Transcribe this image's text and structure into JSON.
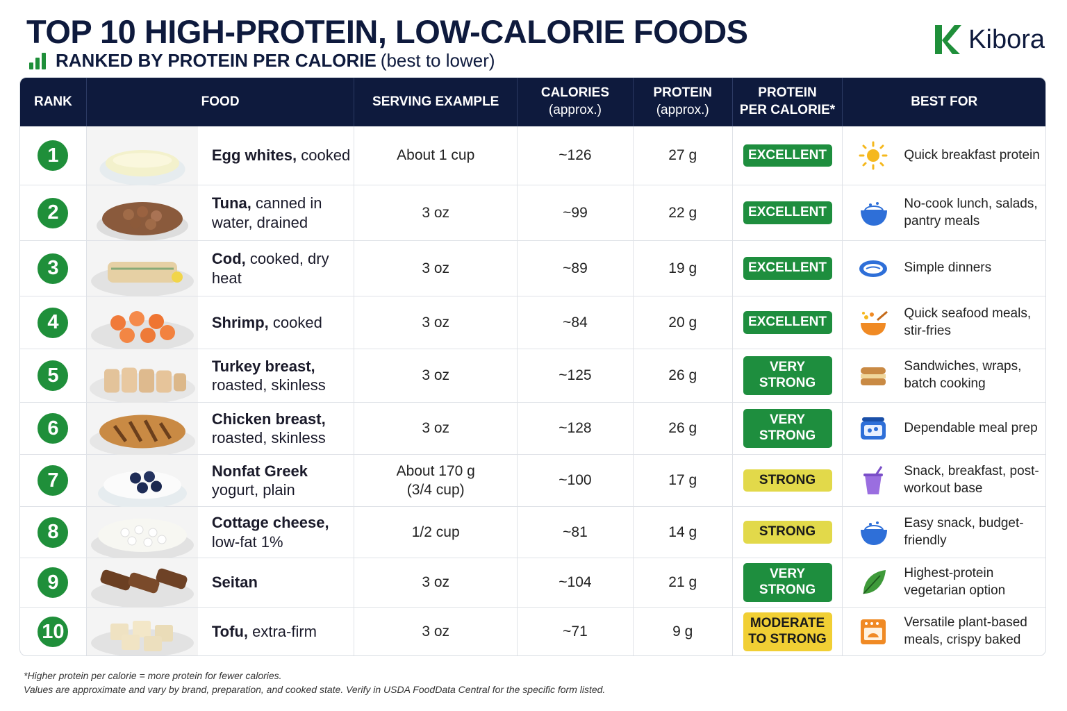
{
  "header": {
    "title": "TOP 10 HIGH-PROTEIN, LOW-CALORIE FOODS",
    "subtitle_main": "RANKED BY PROTEIN PER CALORIE",
    "subtitle_note": "(best to lower)",
    "subtitle_icon": "bar-chart-icon",
    "brand": "Kibora",
    "brand_color": "#1f8f3a"
  },
  "table": {
    "columns": [
      "RANK",
      "FOOD",
      "SERVING EXAMPLE",
      "CALORIES",
      "(approx.)",
      "PROTEIN",
      "(approx.)",
      "PROTEIN",
      "PER CALORIE*",
      "BEST FOR"
    ],
    "rows": [
      {
        "rank": "1",
        "food_bold": "Egg whites,",
        "food_rest": "cooked",
        "serving": "About 1 cup",
        "serving2": "",
        "calories": "~126",
        "protein": "27 g",
        "rating": "EXCELLENT",
        "rating2": "",
        "best_for": "Quick breakfast protein",
        "icon": "sun-icon"
      },
      {
        "rank": "2",
        "food_bold": "Tuna,",
        "food_rest": "canned in water, drained",
        "serving": "3 oz",
        "serving2": "",
        "calories": "~99",
        "protein": "22 g",
        "rating": "EXCELLENT",
        "rating2": "",
        "best_for": "No-cook lunch, salads, pantry meals",
        "icon": "bowl-icon"
      },
      {
        "rank": "3",
        "food_bold": "Cod,",
        "food_rest": "cooked, dry heat",
        "serving": "3 oz",
        "serving2": "",
        "calories": "~89",
        "protein": "19 g",
        "rating": "EXCELLENT",
        "rating2": "",
        "best_for": "Simple dinners",
        "icon": "fish-icon"
      },
      {
        "rank": "4",
        "food_bold": "Shrimp,",
        "food_rest": "cooked",
        "serving": "3 oz",
        "serving2": "",
        "calories": "~84",
        "protein": "20 g",
        "rating": "EXCELLENT",
        "rating2": "",
        "best_for": "Quick seafood meals, stir-fries",
        "icon": "stir-fry-bowl-icon"
      },
      {
        "rank": "5",
        "food_bold": "Turkey breast,",
        "food_rest": "roasted, skinless",
        "serving": "3 oz",
        "serving2": "",
        "calories": "~125",
        "protein": "26 g",
        "rating": "VERY STRONG",
        "rating2": "",
        "best_for": "Sandwiches, wraps, batch cooking",
        "icon": "sandwich-icon"
      },
      {
        "rank": "6",
        "food_bold": "Chicken breast,",
        "food_rest": "roasted, skinless",
        "serving": "3 oz",
        "serving2": "",
        "calories": "~128",
        "protein": "26 g",
        "rating": "VERY STRONG",
        "rating2": "",
        "best_for": "Dependable meal prep",
        "icon": "meal-prep-container-icon"
      },
      {
        "rank": "7",
        "food_bold": "Nonfat Greek",
        "food_rest": "yogurt, plain",
        "serving": "About 170 g",
        "serving2": "(3/4 cup)",
        "calories": "~100",
        "protein": "17 g",
        "rating": "STRONG",
        "rating2": "",
        "best_for": "Snack, breakfast, post-workout base",
        "icon": "cup-straw-icon"
      },
      {
        "rank": "8",
        "food_bold": "Cottage cheese,",
        "food_rest": "low-fat 1%",
        "serving": "1/2 cup",
        "serving2": "",
        "calories": "~81",
        "protein": "14 g",
        "rating": "STRONG",
        "rating2": "",
        "best_for": "Easy snack, budget-friendly",
        "icon": "bowl-icon"
      },
      {
        "rank": "9",
        "food_bold": "Seitan",
        "food_rest": "",
        "serving": "3 oz",
        "serving2": "",
        "calories": "~104",
        "protein": "21 g",
        "rating": "VERY STRONG",
        "rating2": "",
        "best_for": "Highest-protein vegetarian option",
        "icon": "leaf-icon"
      },
      {
        "rank": "10",
        "food_bold": "Tofu,",
        "food_rest": "extra-firm",
        "serving": "3 oz",
        "serving2": "",
        "calories": "~71",
        "protein": "9 g",
        "rating": "MODERATE",
        "rating2": "TO STRONG",
        "best_for": "Versatile plant-based meals, crispy baked",
        "icon": "oven-icon"
      }
    ]
  },
  "footnote": {
    "line1": "*Higher protein per calorie = more protein for fewer calories.",
    "line2": "Values are approximate and vary by brand, preparation, and cooked state. Verify in USDA FoodData Central for the specific form listed."
  },
  "colors": {
    "navy": "#0e1a3d",
    "green": "#1f8f3a",
    "excellent": "#1e8e3e",
    "strong": "#e2d94a",
    "moderate": "#f1cf34"
  }
}
